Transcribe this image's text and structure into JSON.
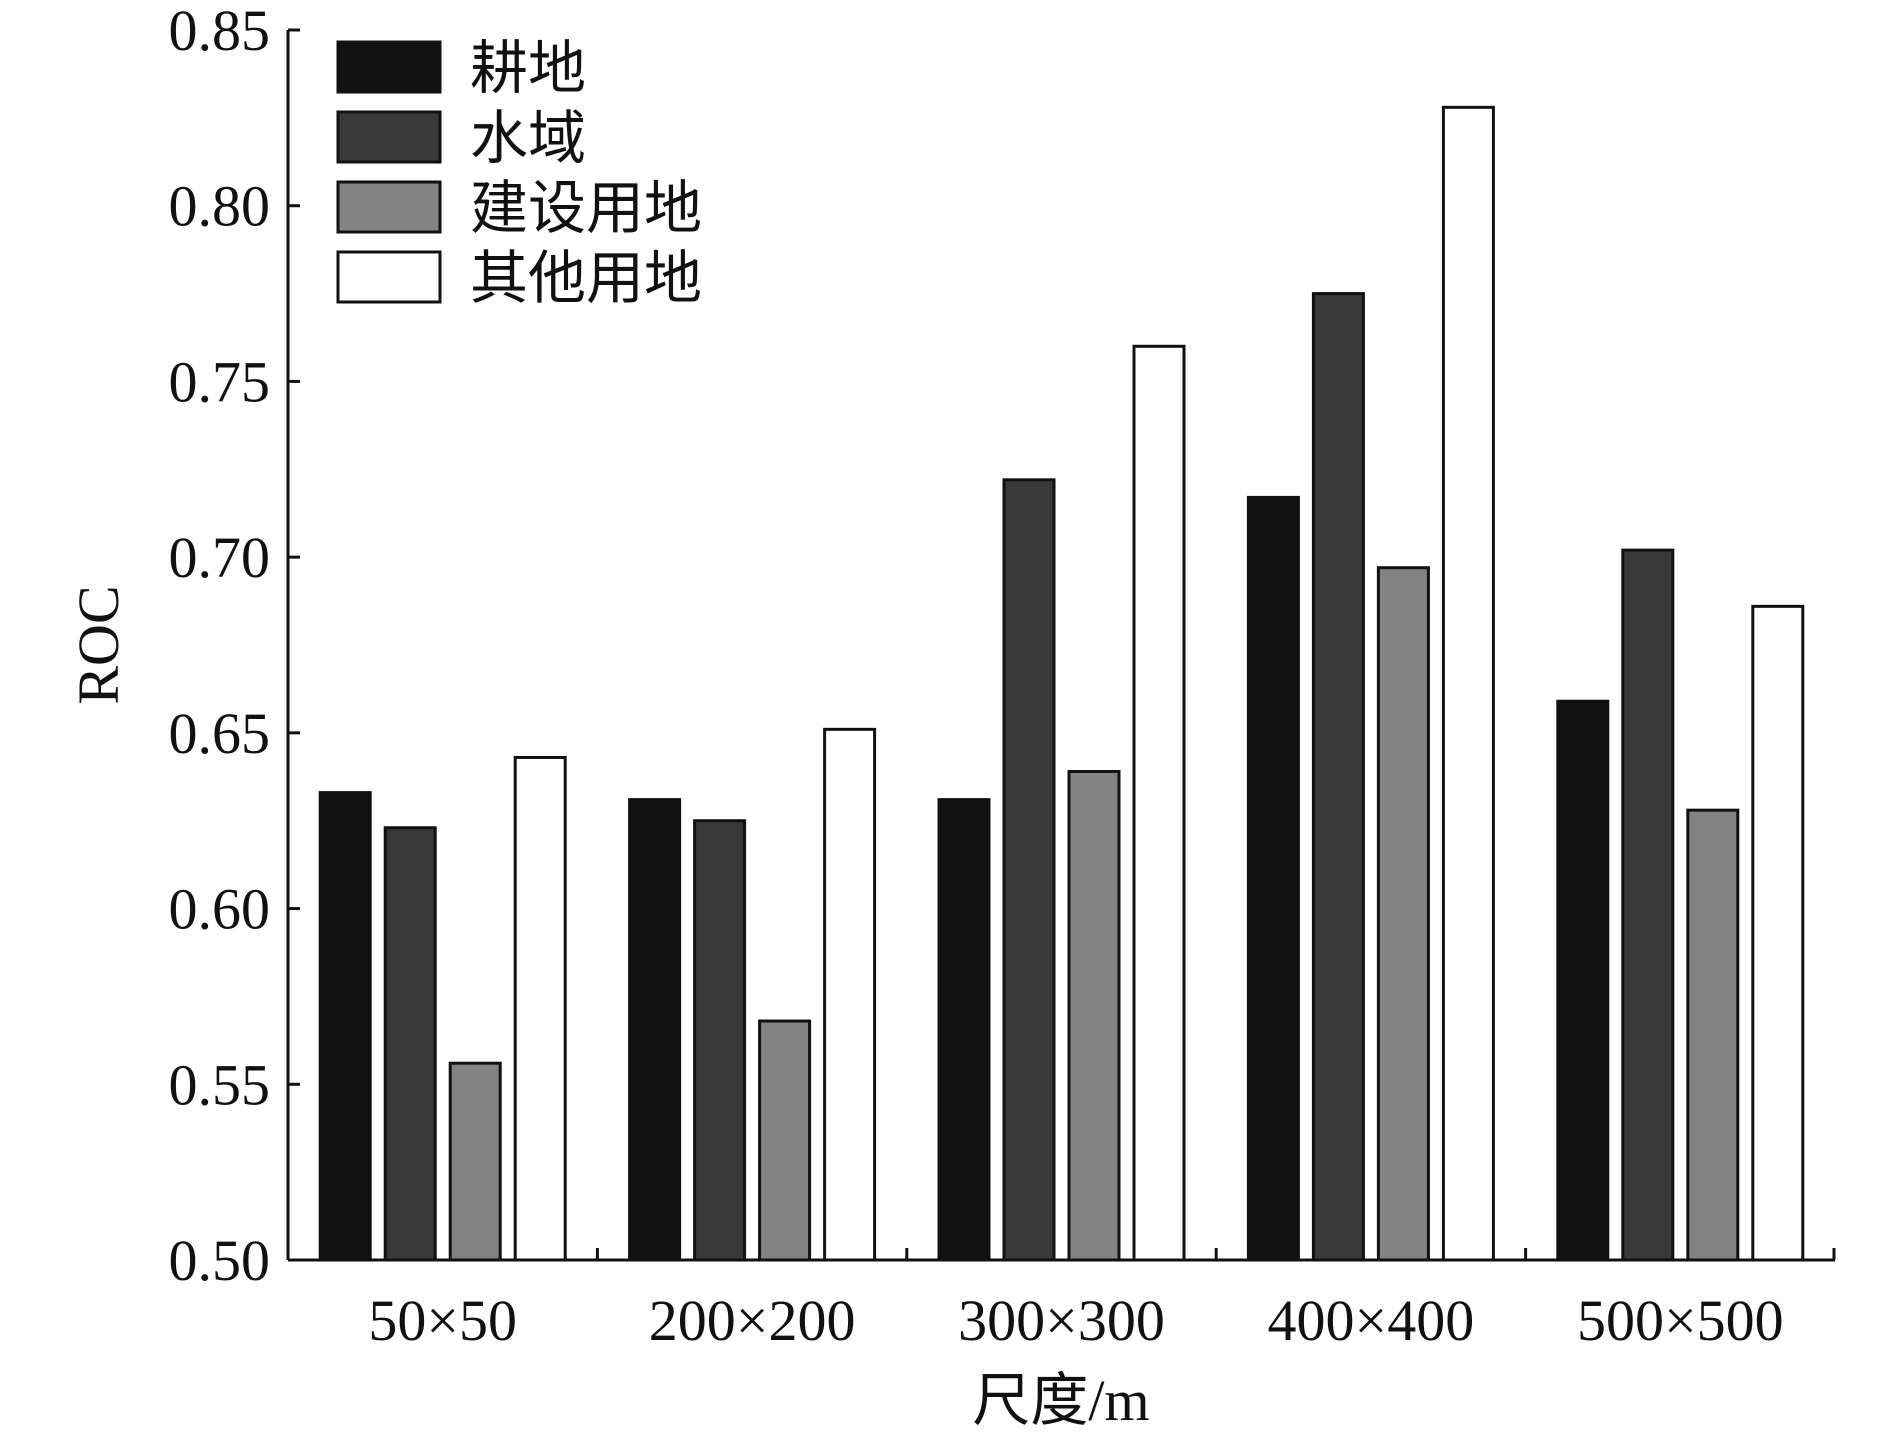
{
  "chart_data": {
    "type": "bar",
    "title": "",
    "xlabel": "尺度/m",
    "ylabel": "ROC",
    "categories": [
      "50×50",
      "200×200",
      "300×300",
      "400×400",
      "500×500"
    ],
    "ylim": [
      0.5,
      0.85
    ],
    "yticks": [
      "0.50",
      "0.55",
      "0.60",
      "0.65",
      "0.70",
      "0.75",
      "0.80",
      "0.85"
    ],
    "grid": false,
    "legend_position": "top-left",
    "series": [
      {
        "name": "耕地",
        "color": "#111111",
        "values": [
          0.633,
          0.631,
          0.631,
          0.717,
          0.659
        ]
      },
      {
        "name": "水域",
        "color": "#393939",
        "values": [
          0.623,
          0.625,
          0.722,
          0.775,
          0.702
        ]
      },
      {
        "name": "建设用地",
        "color": "#838383",
        "values": [
          0.556,
          0.568,
          0.639,
          0.697,
          0.628
        ]
      },
      {
        "name": "其他用地",
        "color": "#ffffff",
        "values": [
          0.643,
          0.651,
          0.76,
          0.828,
          0.686
        ]
      }
    ]
  }
}
